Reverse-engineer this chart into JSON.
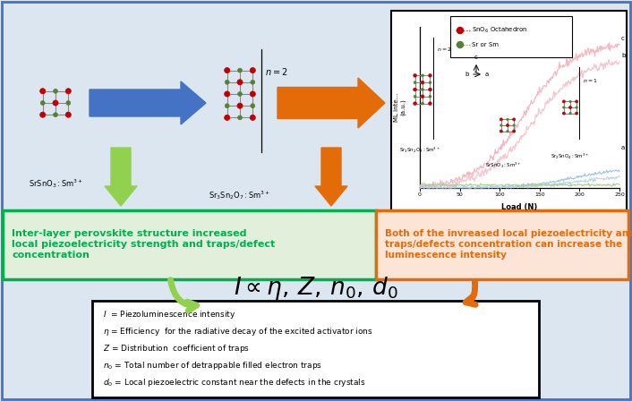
{
  "bg_color": "#dce6f1",
  "blue_arrow_color": "#4472c4",
  "orange_arrow_color": "#e36c09",
  "green_arrow_color": "#92d050",
  "green_box_border": "#00b050",
  "green_box_fill": "#e2efda",
  "orange_box_border": "#e36c09",
  "orange_box_fill": "#fce4d6",
  "formula_box_border": "#000000",
  "graph_border": "#000000",
  "red_atom": "#c00000",
  "green_atom": "#548235",
  "graph_xlim": [
    0,
    250
  ],
  "graph_xticks": [
    0,
    50,
    100,
    150,
    200,
    250
  ],
  "graph_xlabel": "Load (N)",
  "graph_ylabel": "ML inte...\n(a.u.)",
  "green_box_text": "Inter-layer perovskite structure increased\nlocal piezoelectricity strength and traps/defect\nconcentration",
  "orange_box_text": "Both of the invreased local piezoelectricity and\ntraps/defects concentration can increase the\nluminescence intensity",
  "formula_lines": [
    "I  = Piezoluminescence intensity",
    "η = Efficiency  for the radiative decay of the excited activator ions",
    "Z = Distribution  coefficient of traps",
    "n₀ = Total number of detrappable filled electron traps",
    "d₀ = Local piezoelectric constant near the defects in the crystals"
  ]
}
